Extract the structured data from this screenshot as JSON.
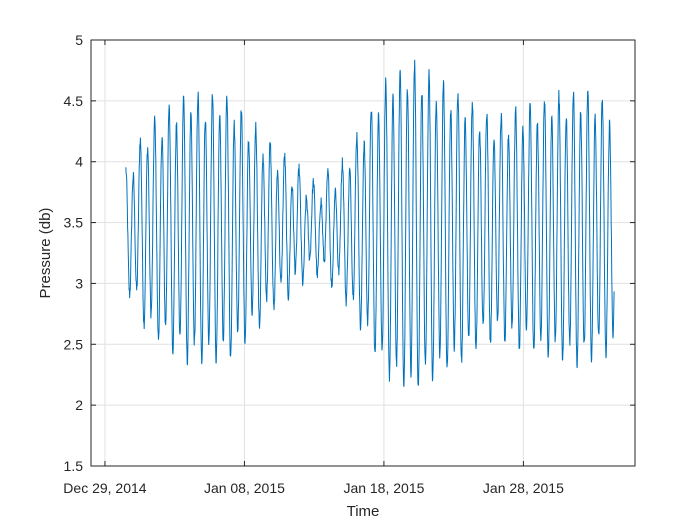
{
  "chart_data": {
    "type": "line",
    "title": "",
    "xlabel": "Time",
    "ylabel": "Pressure (db)",
    "x_range": [
      "2014-12-28",
      "2015-02-05"
    ],
    "x_ticks": [
      {
        "date": "2014-12-29",
        "label": "Dec 29, 2014"
      },
      {
        "date": "2015-01-08",
        "label": "Jan 08, 2015"
      },
      {
        "date": "2015-01-18",
        "label": "Jan 18, 2015"
      },
      {
        "date": "2015-01-28",
        "label": "Jan 28, 2015"
      }
    ],
    "ylim": [
      1.5,
      5
    ],
    "y_ticks": [
      {
        "value": 1.5,
        "label": "1.5"
      },
      {
        "value": 2,
        "label": "2"
      },
      {
        "value": 2.5,
        "label": "2.5"
      },
      {
        "value": 3,
        "label": "3"
      },
      {
        "value": 3.5,
        "label": "3.5"
      },
      {
        "value": 4,
        "label": "4"
      },
      {
        "value": 4.5,
        "label": "4.5"
      },
      {
        "value": 5,
        "label": "5"
      }
    ],
    "grid": true,
    "line_color": "#0072BD",
    "series": [
      {
        "x_start": "2014-12-30T12:00",
        "x_end": "2015-02-03T12:00",
        "step_hours": 1,
        "mean": 3.45,
        "semidiurnal_amplitude": [
          {
            "date": "2014-12-30",
            "value": 0.28
          },
          {
            "date": "2015-01-01",
            "value": 0.75
          },
          {
            "date": "2015-01-04",
            "value": 1.02
          },
          {
            "date": "2015-01-07",
            "value": 0.98
          },
          {
            "date": "2015-01-10",
            "value": 0.6
          },
          {
            "date": "2015-01-13",
            "value": 0.28
          },
          {
            "date": "2015-01-15",
            "value": 0.45
          },
          {
            "date": "2015-01-18",
            "value": 1.1
          },
          {
            "date": "2015-01-20",
            "value": 1.28
          },
          {
            "date": "2015-01-23",
            "value": 1.05
          },
          {
            "date": "2015-01-26",
            "value": 0.82
          },
          {
            "date": "2015-01-29",
            "value": 0.95
          },
          {
            "date": "2015-02-01",
            "value": 1.05
          },
          {
            "date": "2015-02-03",
            "value": 0.95
          }
        ],
        "diurnal_amplitude": 0.12,
        "noise": 0.05
      }
    ]
  }
}
